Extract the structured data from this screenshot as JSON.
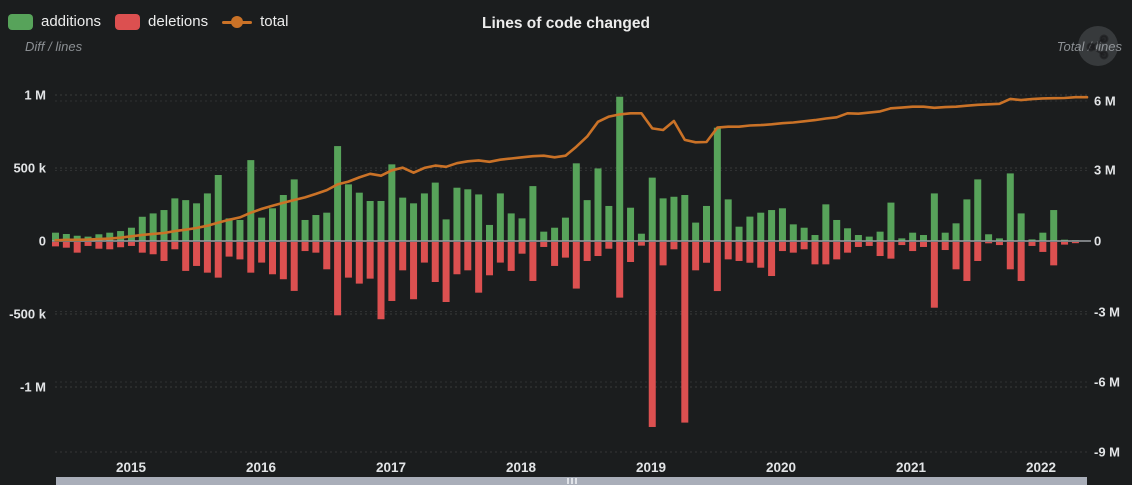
{
  "header": {
    "title": "Lines of code changed"
  },
  "legend": [
    {
      "label": "additions",
      "color": "#57a35a",
      "marker": "box"
    },
    {
      "label": "deletions",
      "color": "#dc5050",
      "marker": "box"
    },
    {
      "label": "total",
      "color": "#ca7227",
      "marker": "line-dot"
    }
  ],
  "axes": {
    "left_title": "Diff / lines",
    "right_title": "Total / lines",
    "left_ticks": [
      "1 M",
      "500 k",
      "0",
      "-500 k",
      "-1 M"
    ],
    "right_ticks": [
      "6 M",
      "3 M",
      "0",
      "-3 M",
      "-6 M",
      "-9 M"
    ],
    "x_ticks": [
      "2015",
      "2016",
      "2017",
      "2018",
      "2019",
      "2020",
      "2021",
      "2022"
    ]
  },
  "icons": {
    "menu_button": "share-icon",
    "scrollbar_grip": "grip-lines-icon"
  },
  "colors": {
    "background": "#1b1d1e",
    "additions": "#57a35a",
    "deletions": "#dc5050",
    "total_line": "#ca7227",
    "zero_line": "#9ba0a4",
    "grid": "rgba(255,255,255,0.13)",
    "text": "#e2e4e6",
    "muted_text": "#8b8f93",
    "scrollbar": "#a9aeb9"
  },
  "chart_data": {
    "type": "bar",
    "subtype": "monthly diverging bars (additions up, deletions down) with cumulative total line on secondary axis",
    "title": "Lines of code changed",
    "xlabel": "",
    "ylabel_left": "Diff / lines",
    "ylabel_right": "Total / lines",
    "ylim_left_lines": [
      -1250000,
      1170000
    ],
    "ylim_right_lines": [
      -9300000,
      7300000
    ],
    "grid": "dashed horizontal",
    "legend_position": "top-left",
    "units": {
      "additions_k": "thousands of lines",
      "deletions_k": "thousands of lines (magnitude, drawn negative)",
      "total_M": "millions of lines"
    },
    "x": [
      "2014-06",
      "2014-07",
      "2014-08",
      "2014-09",
      "2014-10",
      "2014-11",
      "2014-12",
      "2015-01",
      "2015-02",
      "2015-03",
      "2015-04",
      "2015-05",
      "2015-06",
      "2015-07",
      "2015-08",
      "2015-09",
      "2015-10",
      "2015-11",
      "2015-12",
      "2016-01",
      "2016-02",
      "2016-03",
      "2016-04",
      "2016-05",
      "2016-06",
      "2016-07",
      "2016-08",
      "2016-09",
      "2016-10",
      "2016-11",
      "2016-12",
      "2017-01",
      "2017-02",
      "2017-03",
      "2017-04",
      "2017-05",
      "2017-06",
      "2017-07",
      "2017-08",
      "2017-09",
      "2017-10",
      "2017-11",
      "2017-12",
      "2018-01",
      "2018-02",
      "2018-03",
      "2018-04",
      "2018-05",
      "2018-06",
      "2018-07",
      "2018-08",
      "2018-09",
      "2018-10",
      "2018-11",
      "2018-12",
      "2019-01",
      "2019-02",
      "2019-03",
      "2019-04",
      "2019-05",
      "2019-06",
      "2019-07",
      "2019-08",
      "2019-09",
      "2019-10",
      "2019-11",
      "2019-12",
      "2020-01",
      "2020-02",
      "2020-03",
      "2020-04",
      "2020-05",
      "2020-06",
      "2020-07",
      "2020-08",
      "2020-09",
      "2020-10",
      "2020-11",
      "2020-12",
      "2021-01",
      "2021-02",
      "2021-03",
      "2021-04",
      "2021-05",
      "2021-06",
      "2021-07",
      "2021-08",
      "2021-09",
      "2021-10",
      "2021-11",
      "2021-12",
      "2022-01",
      "2022-02",
      "2022-03",
      "2022-04"
    ],
    "series": [
      {
        "name": "additions",
        "axis": "left",
        "values_k": [
          57,
          48,
          36,
          30,
          46,
          57,
          68,
          91,
          166,
          189,
          212,
          292,
          280,
          258,
          326,
          452,
          155,
          144,
          554,
          160,
          224,
          315,
          422,
          144,
          178,
          194,
          650,
          388,
          331,
          274,
          274,
          525,
          297,
          258,
          326,
          400,
          148,
          365,
          354,
          319,
          110,
          326,
          189,
          155,
          376,
          64,
          91,
          160,
          532,
          280,
          497,
          240,
          988,
          228,
          50,
          434,
          292,
          303,
          315,
          126,
          240,
          776,
          285,
          98,
          167,
          194,
          212,
          224,
          114,
          91,
          41,
          251,
          144,
          87,
          41,
          30,
          64,
          263,
          18,
          57,
          41,
          326,
          57,
          121,
          285,
          422,
          46,
          18,
          463,
          189,
          11,
          57,
          212,
          9,
          5
        ]
      },
      {
        "name": "deletions",
        "axis": "left",
        "values_k": [
          30,
          39,
          73,
          27,
          46,
          50,
          36,
          27,
          73,
          84,
          130,
          50,
          198,
          164,
          210,
          244,
          100,
          119,
          210,
          141,
          221,
          255,
          335,
          62,
          73,
          187,
          502,
          244,
          285,
          251,
          529,
          404,
          194,
          392,
          141,
          274,
          411,
          221,
          194,
          347,
          228,
          141,
          198,
          80,
          267,
          34,
          164,
          107,
          319,
          130,
          96,
          46,
          381,
          137,
          25,
          1267,
          160,
          50,
          1237,
          194,
          142,
          336,
          119,
          130,
          142,
          176,
          233,
          62,
          73,
          50,
          153,
          153,
          119,
          73,
          34,
          27,
          96,
          114,
          21,
          62,
          34,
          450,
          55,
          187,
          267,
          130,
          9,
          21,
          187,
          267,
          27,
          68,
          160,
          18,
          8
        ]
      },
      {
        "name": "total",
        "axis": "right",
        "values_M": [
          0.03,
          0.05,
          0.05,
          0.06,
          0.08,
          0.1,
          0.14,
          0.2,
          0.26,
          0.3,
          0.34,
          0.42,
          0.48,
          0.55,
          0.65,
          0.78,
          0.9,
          1.0,
          1.2,
          1.36,
          1.5,
          1.62,
          1.74,
          1.85,
          2.0,
          2.16,
          2.4,
          2.52,
          2.7,
          2.85,
          2.77,
          3.0,
          3.11,
          2.9,
          3.1,
          3.2,
          3.15,
          3.3,
          3.38,
          3.42,
          3.36,
          3.45,
          3.5,
          3.55,
          3.6,
          3.62,
          3.55,
          3.62,
          4.0,
          4.43,
          5.06,
          5.28,
          5.37,
          5.42,
          5.42,
          4.78,
          4.71,
          5.09,
          4.29,
          4.19,
          4.2,
          4.81,
          4.85,
          4.85,
          4.9,
          4.92,
          4.95,
          5.0,
          5.03,
          5.08,
          5.13,
          5.2,
          5.25,
          5.42,
          5.4,
          5.45,
          5.5,
          5.63,
          5.66,
          5.7,
          5.7,
          5.65,
          5.68,
          5.7,
          5.74,
          5.78,
          5.8,
          5.82,
          6.03,
          5.98,
          6.02,
          6.05,
          6.06,
          6.07,
          6.1
        ]
      }
    ]
  }
}
